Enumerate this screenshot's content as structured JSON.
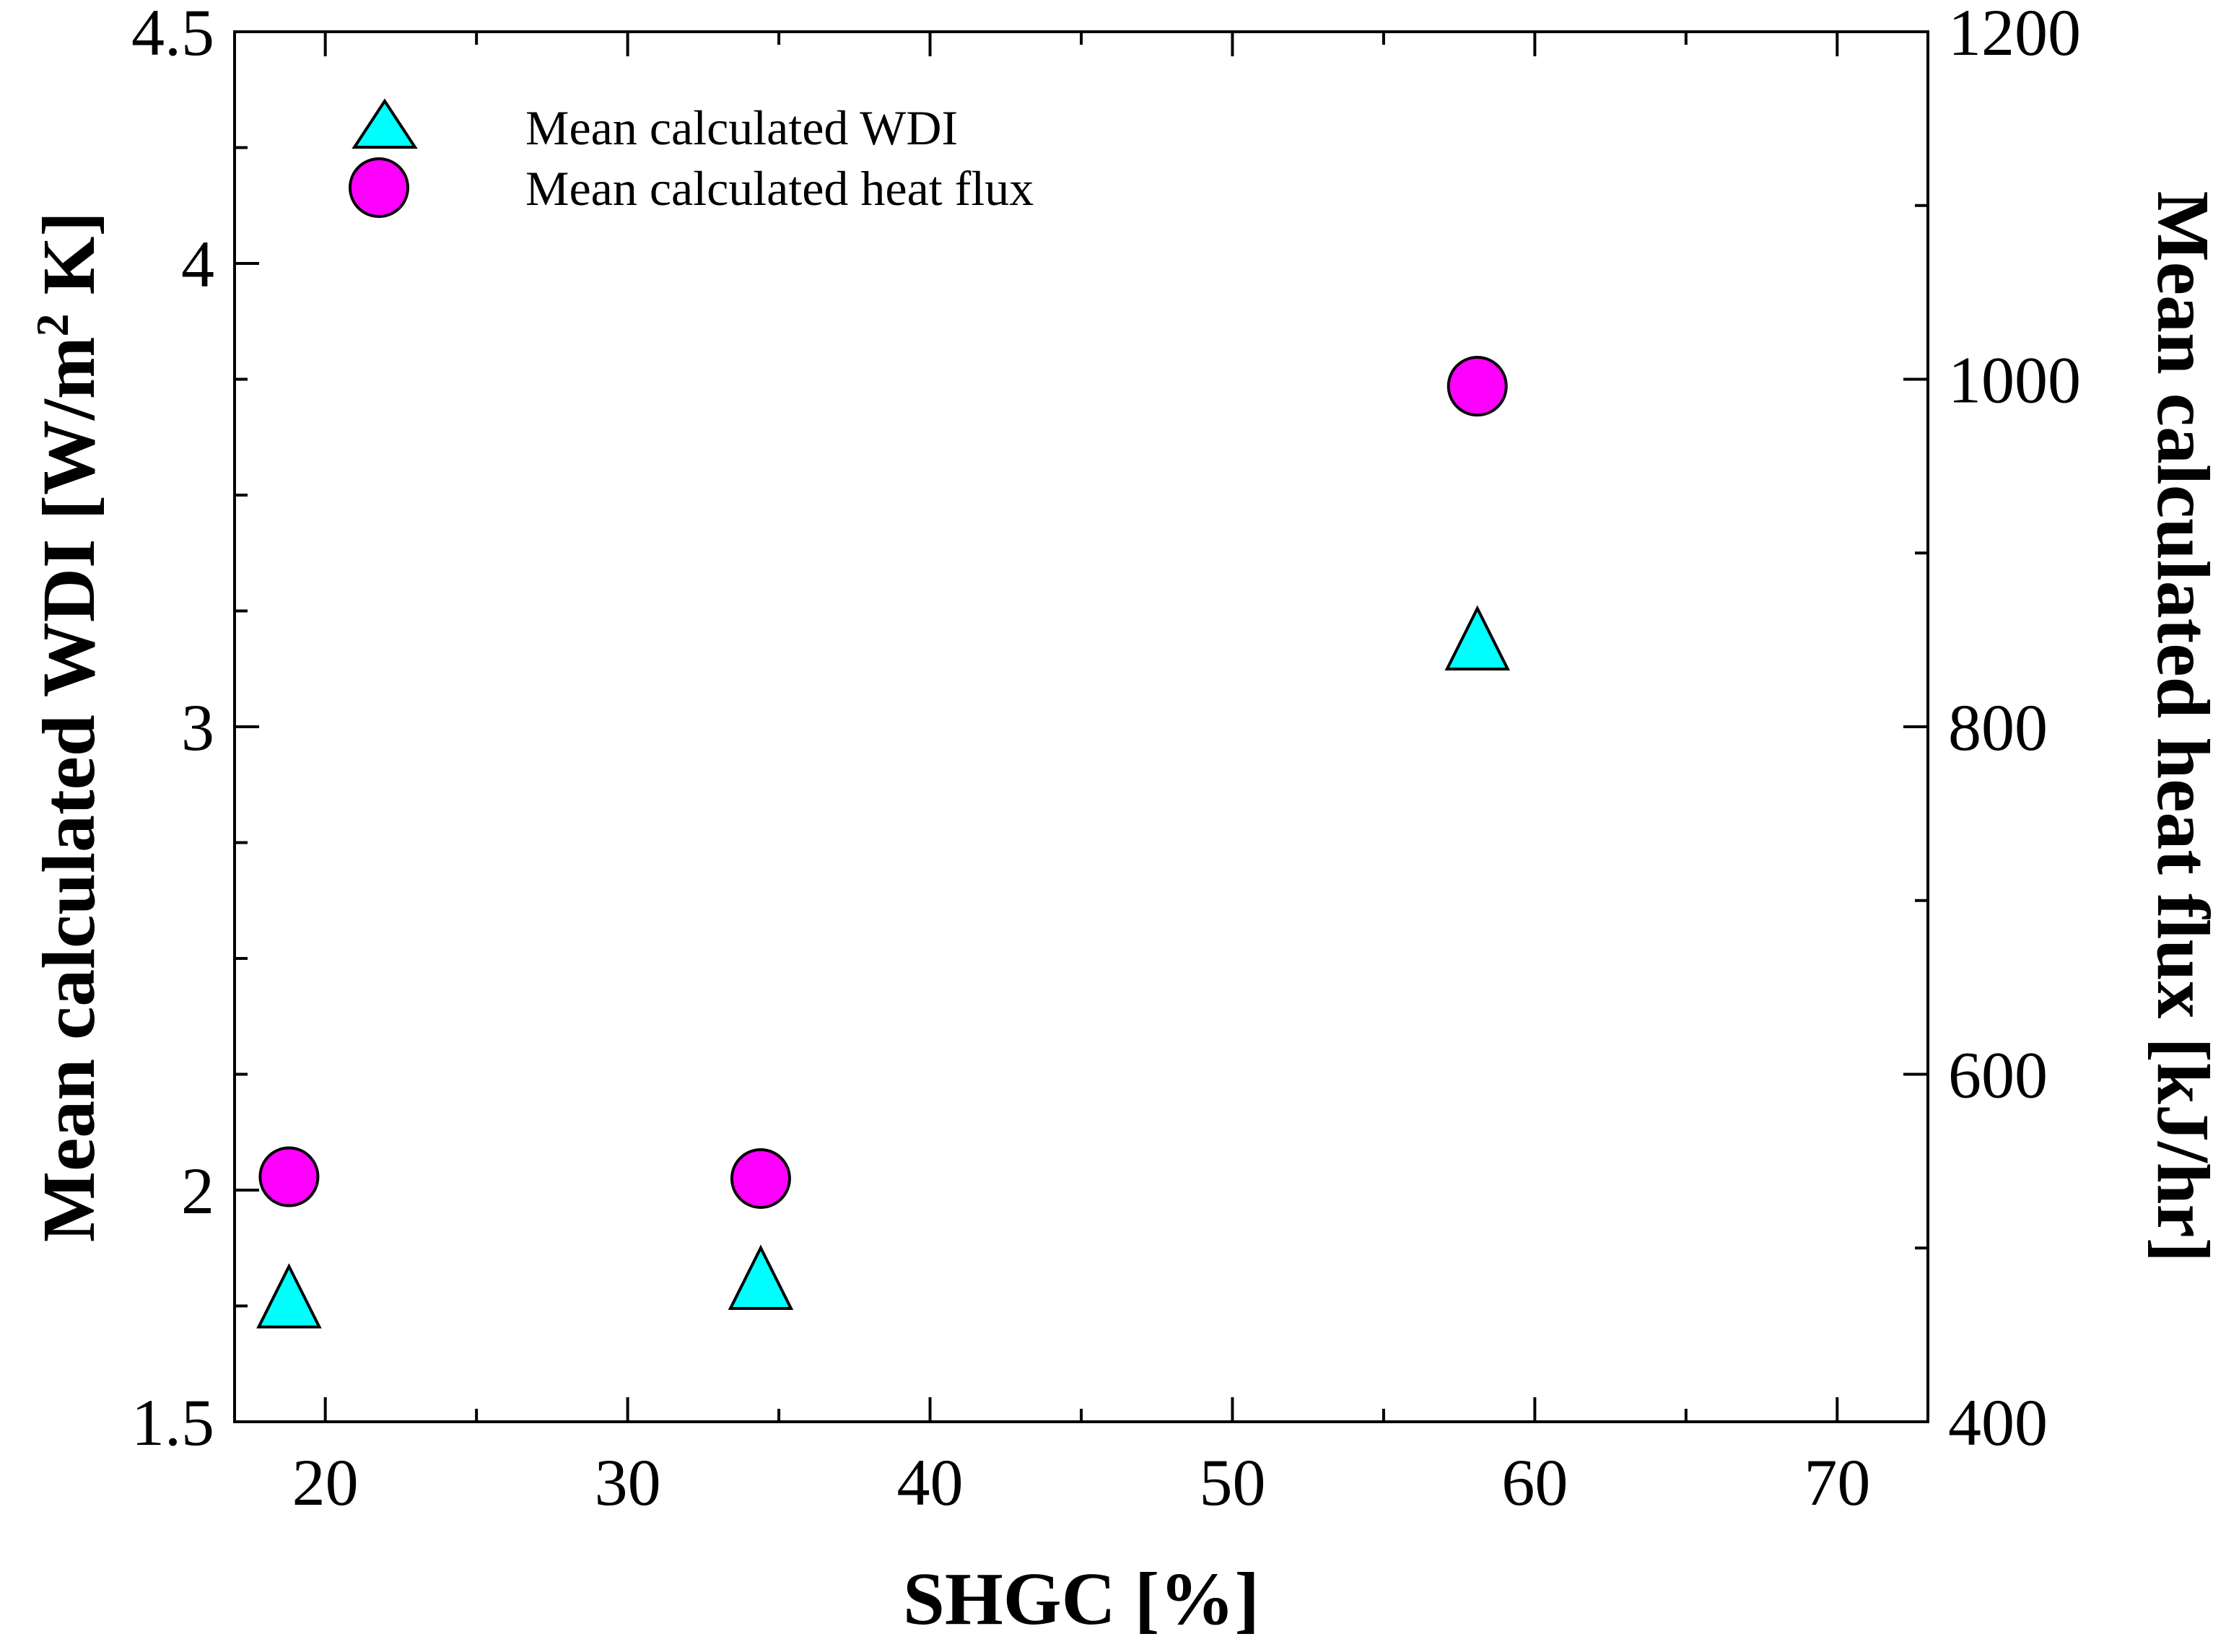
{
  "chart_data": {
    "type": "scatter",
    "xlabel": "SHGC [%]",
    "ylabel_left": "Mean calculated WDI [W/m2 K]",
    "ylabel_left_parts": {
      "before_sup": "Mean calculated WDI [W/m",
      "sup": "2",
      "after_sup": " K]"
    },
    "ylabel_right": "Mean calculated heat flux [kJ/hr]",
    "xlim": [
      17,
      73
    ],
    "ylim_left": [
      1.5,
      4.5
    ],
    "ylim_right": [
      400,
      1200
    ],
    "x_ticks": [
      20,
      30,
      40,
      50,
      60,
      70
    ],
    "x_tick_labels": [
      "20",
      "30",
      "40",
      "50",
      "60",
      "70"
    ],
    "y_left_ticks": [
      1.5,
      2,
      3,
      4,
      4.5
    ],
    "y_left_tick_labels": [
      "1.5",
      "2",
      "3",
      "4",
      "4.5"
    ],
    "y_right_ticks": [
      400,
      600,
      800,
      1000,
      1200
    ],
    "y_right_tick_labels": [
      "400",
      "600",
      "800",
      "1000",
      "1200"
    ],
    "legend_position": "top-left",
    "series": [
      {
        "name": "Mean calculated WDI",
        "axis": "left",
        "marker": "triangle",
        "color": "#00FFFF",
        "x": [
          18.8,
          34.4,
          58.1
        ],
        "y": [
          1.77,
          1.81,
          3.19
        ]
      },
      {
        "name": "Mean calculated heat flux",
        "axis": "right",
        "marker": "circle",
        "color": "#FF00FF",
        "x": [
          18.8,
          34.4,
          58.1
        ],
        "y": [
          541,
          540,
          996
        ]
      }
    ]
  }
}
